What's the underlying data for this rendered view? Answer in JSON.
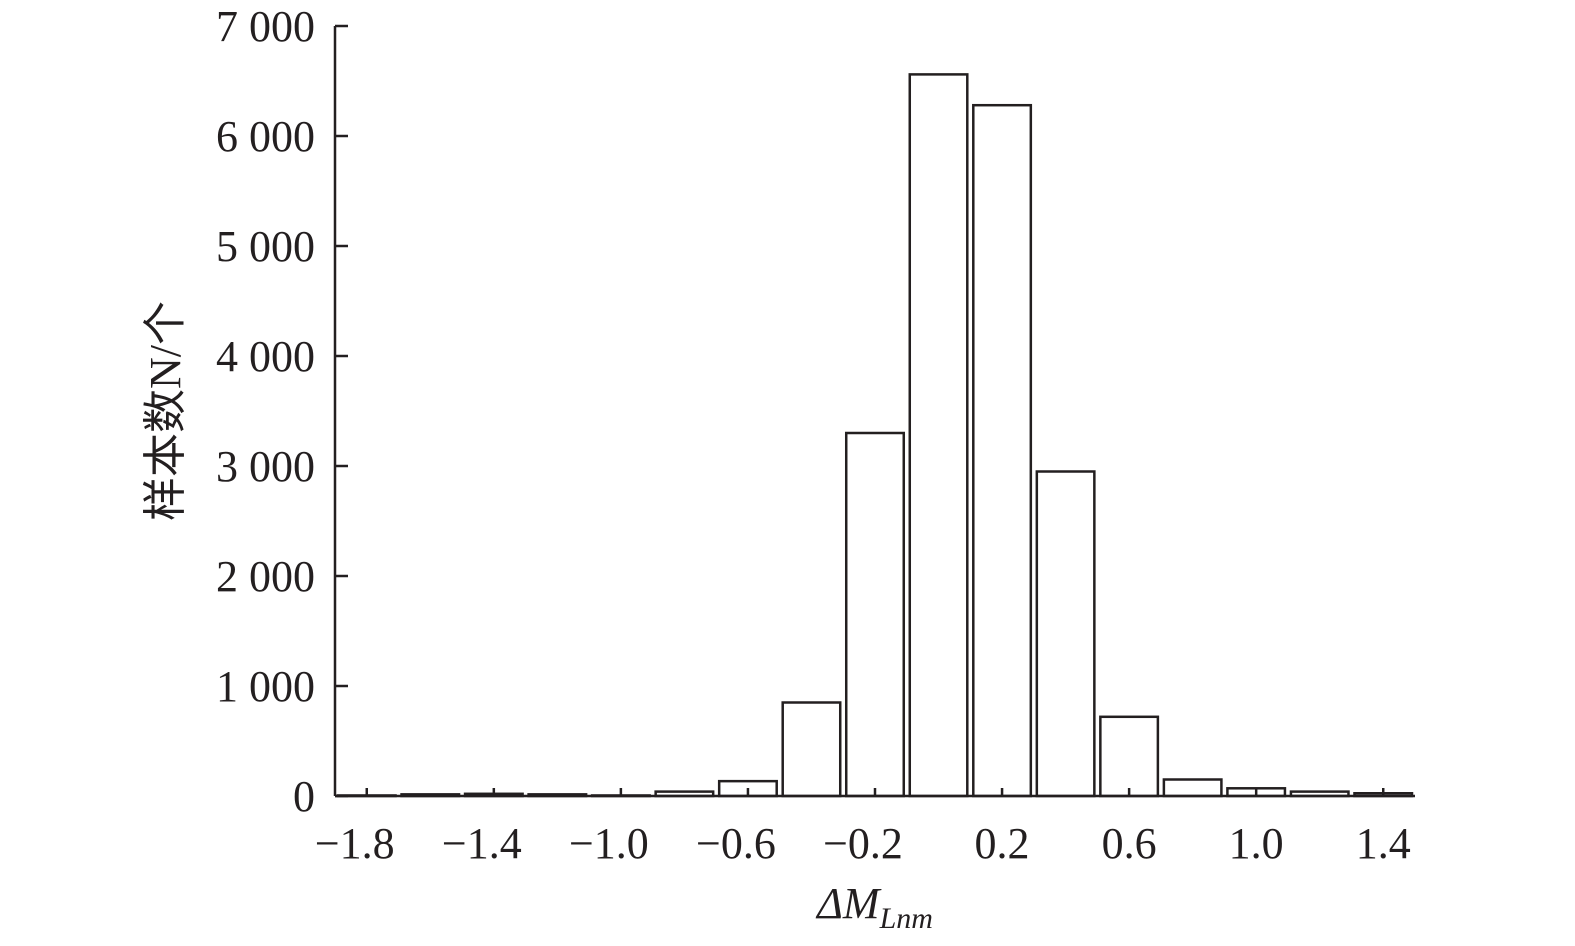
{
  "chart_data": {
    "type": "histogram",
    "x_label_main": "ΔM",
    "x_label_sub": "Lnm",
    "y_label": "样本数N/个",
    "bins": [
      -1.9,
      -1.7,
      -1.5,
      -1.3,
      -1.1,
      -0.9,
      -0.7,
      -0.5,
      -0.3,
      -0.1,
      0.1,
      0.3,
      0.5,
      0.7,
      0.9,
      1.1,
      1.3,
      1.5
    ],
    "counts": [
      5,
      15,
      20,
      15,
      5,
      40,
      135,
      850,
      3300,
      6560,
      6280,
      2950,
      720,
      150,
      70,
      40,
      25
    ],
    "color": "#ffffff",
    "xlim": [
      -1.9,
      1.5
    ],
    "xticks": [
      {
        "value": -1.8,
        "label": "−1.8"
      },
      {
        "value": -1.4,
        "label": "−1.4"
      },
      {
        "value": -1.0,
        "label": "−1.0"
      },
      {
        "value": -0.6,
        "label": "−0.6"
      },
      {
        "value": -0.2,
        "label": "−0.2"
      },
      0.2,
      0.6,
      {
        "value": 1.0,
        "label": "1.0"
      },
      1.4
    ],
    "ylim": [
      0,
      7000
    ],
    "yticks": [
      0,
      {
        "value": 1000,
        "label": "1 000"
      },
      {
        "value": 2000,
        "label": "2 000"
      },
      {
        "value": 3000,
        "label": "3 000"
      },
      {
        "value": 4000,
        "label": "4 000"
      },
      {
        "value": 5000,
        "label": "5 000"
      },
      {
        "value": 6000,
        "label": "6 000"
      },
      {
        "value": 7000,
        "label": "7 000"
      }
    ]
  }
}
